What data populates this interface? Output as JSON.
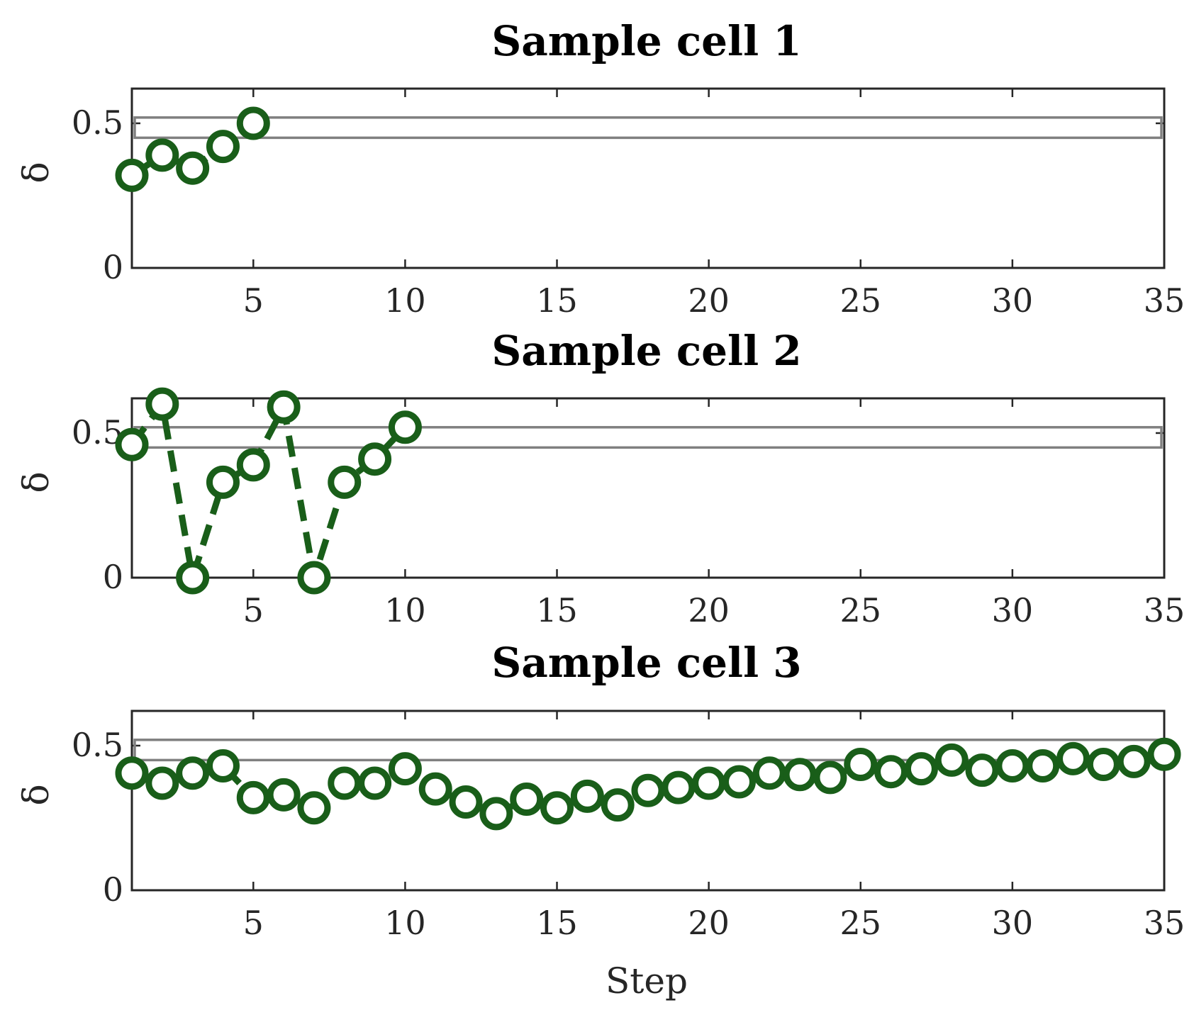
{
  "chart_data": [
    {
      "type": "line",
      "title": "Sample cell 1",
      "xlabel": "",
      "ylabel": "δ",
      "xlim": [
        1,
        35
      ],
      "ylim": [
        0,
        0.62
      ],
      "xticks": [
        5,
        10,
        15,
        20,
        25,
        30,
        35
      ],
      "yticks": [
        0,
        0.5
      ],
      "ytick_labels": [
        "0",
        "0.5"
      ],
      "band": {
        "lower": 0.45,
        "upper": 0.52
      },
      "series": [
        {
          "name": "cell 1",
          "x": [
            1,
            2,
            3,
            4,
            5
          ],
          "values": [
            0.32,
            0.39,
            0.345,
            0.42,
            0.5
          ]
        }
      ]
    },
    {
      "type": "line",
      "title": "Sample cell 2",
      "xlabel": "",
      "ylabel": "δ",
      "xlim": [
        1,
        35
      ],
      "ylim": [
        0,
        0.62
      ],
      "xticks": [
        5,
        10,
        15,
        20,
        25,
        30,
        35
      ],
      "yticks": [
        0,
        0.5
      ],
      "ytick_labels": [
        "0",
        "0.5"
      ],
      "band": {
        "lower": 0.45,
        "upper": 0.52
      },
      "series": [
        {
          "name": "cell 2",
          "x": [
            1,
            2,
            3,
            4,
            5,
            6,
            7,
            8,
            9,
            10
          ],
          "values": [
            0.46,
            0.6,
            0.0,
            0.33,
            0.39,
            0.59,
            0.0,
            0.33,
            0.41,
            0.52
          ]
        }
      ]
    },
    {
      "type": "line",
      "title": "Sample cell 3",
      "xlabel": "Step",
      "ylabel": "δ",
      "xlim": [
        1,
        35
      ],
      "ylim": [
        0,
        0.62
      ],
      "xticks": [
        5,
        10,
        15,
        20,
        25,
        30,
        35
      ],
      "yticks": [
        0,
        0.5
      ],
      "ytick_labels": [
        "0",
        "0.5"
      ],
      "band": {
        "lower": 0.45,
        "upper": 0.52
      },
      "series": [
        {
          "name": "cell 3",
          "x": [
            1,
            2,
            3,
            4,
            5,
            6,
            7,
            8,
            9,
            10,
            11,
            12,
            13,
            14,
            15,
            16,
            17,
            18,
            19,
            20,
            21,
            22,
            23,
            24,
            25,
            26,
            27,
            28,
            29,
            30,
            31,
            32,
            33,
            34,
            35
          ],
          "values": [
            0.405,
            0.37,
            0.405,
            0.43,
            0.32,
            0.33,
            0.285,
            0.37,
            0.37,
            0.42,
            0.35,
            0.305,
            0.265,
            0.315,
            0.285,
            0.325,
            0.295,
            0.345,
            0.355,
            0.37,
            0.375,
            0.405,
            0.4,
            0.39,
            0.435,
            0.41,
            0.42,
            0.45,
            0.415,
            0.43,
            0.43,
            0.455,
            0.435,
            0.445,
            0.47
          ]
        }
      ]
    }
  ],
  "colors": {
    "series": "#195e19",
    "band": "#808080",
    "axes": "#262626"
  }
}
